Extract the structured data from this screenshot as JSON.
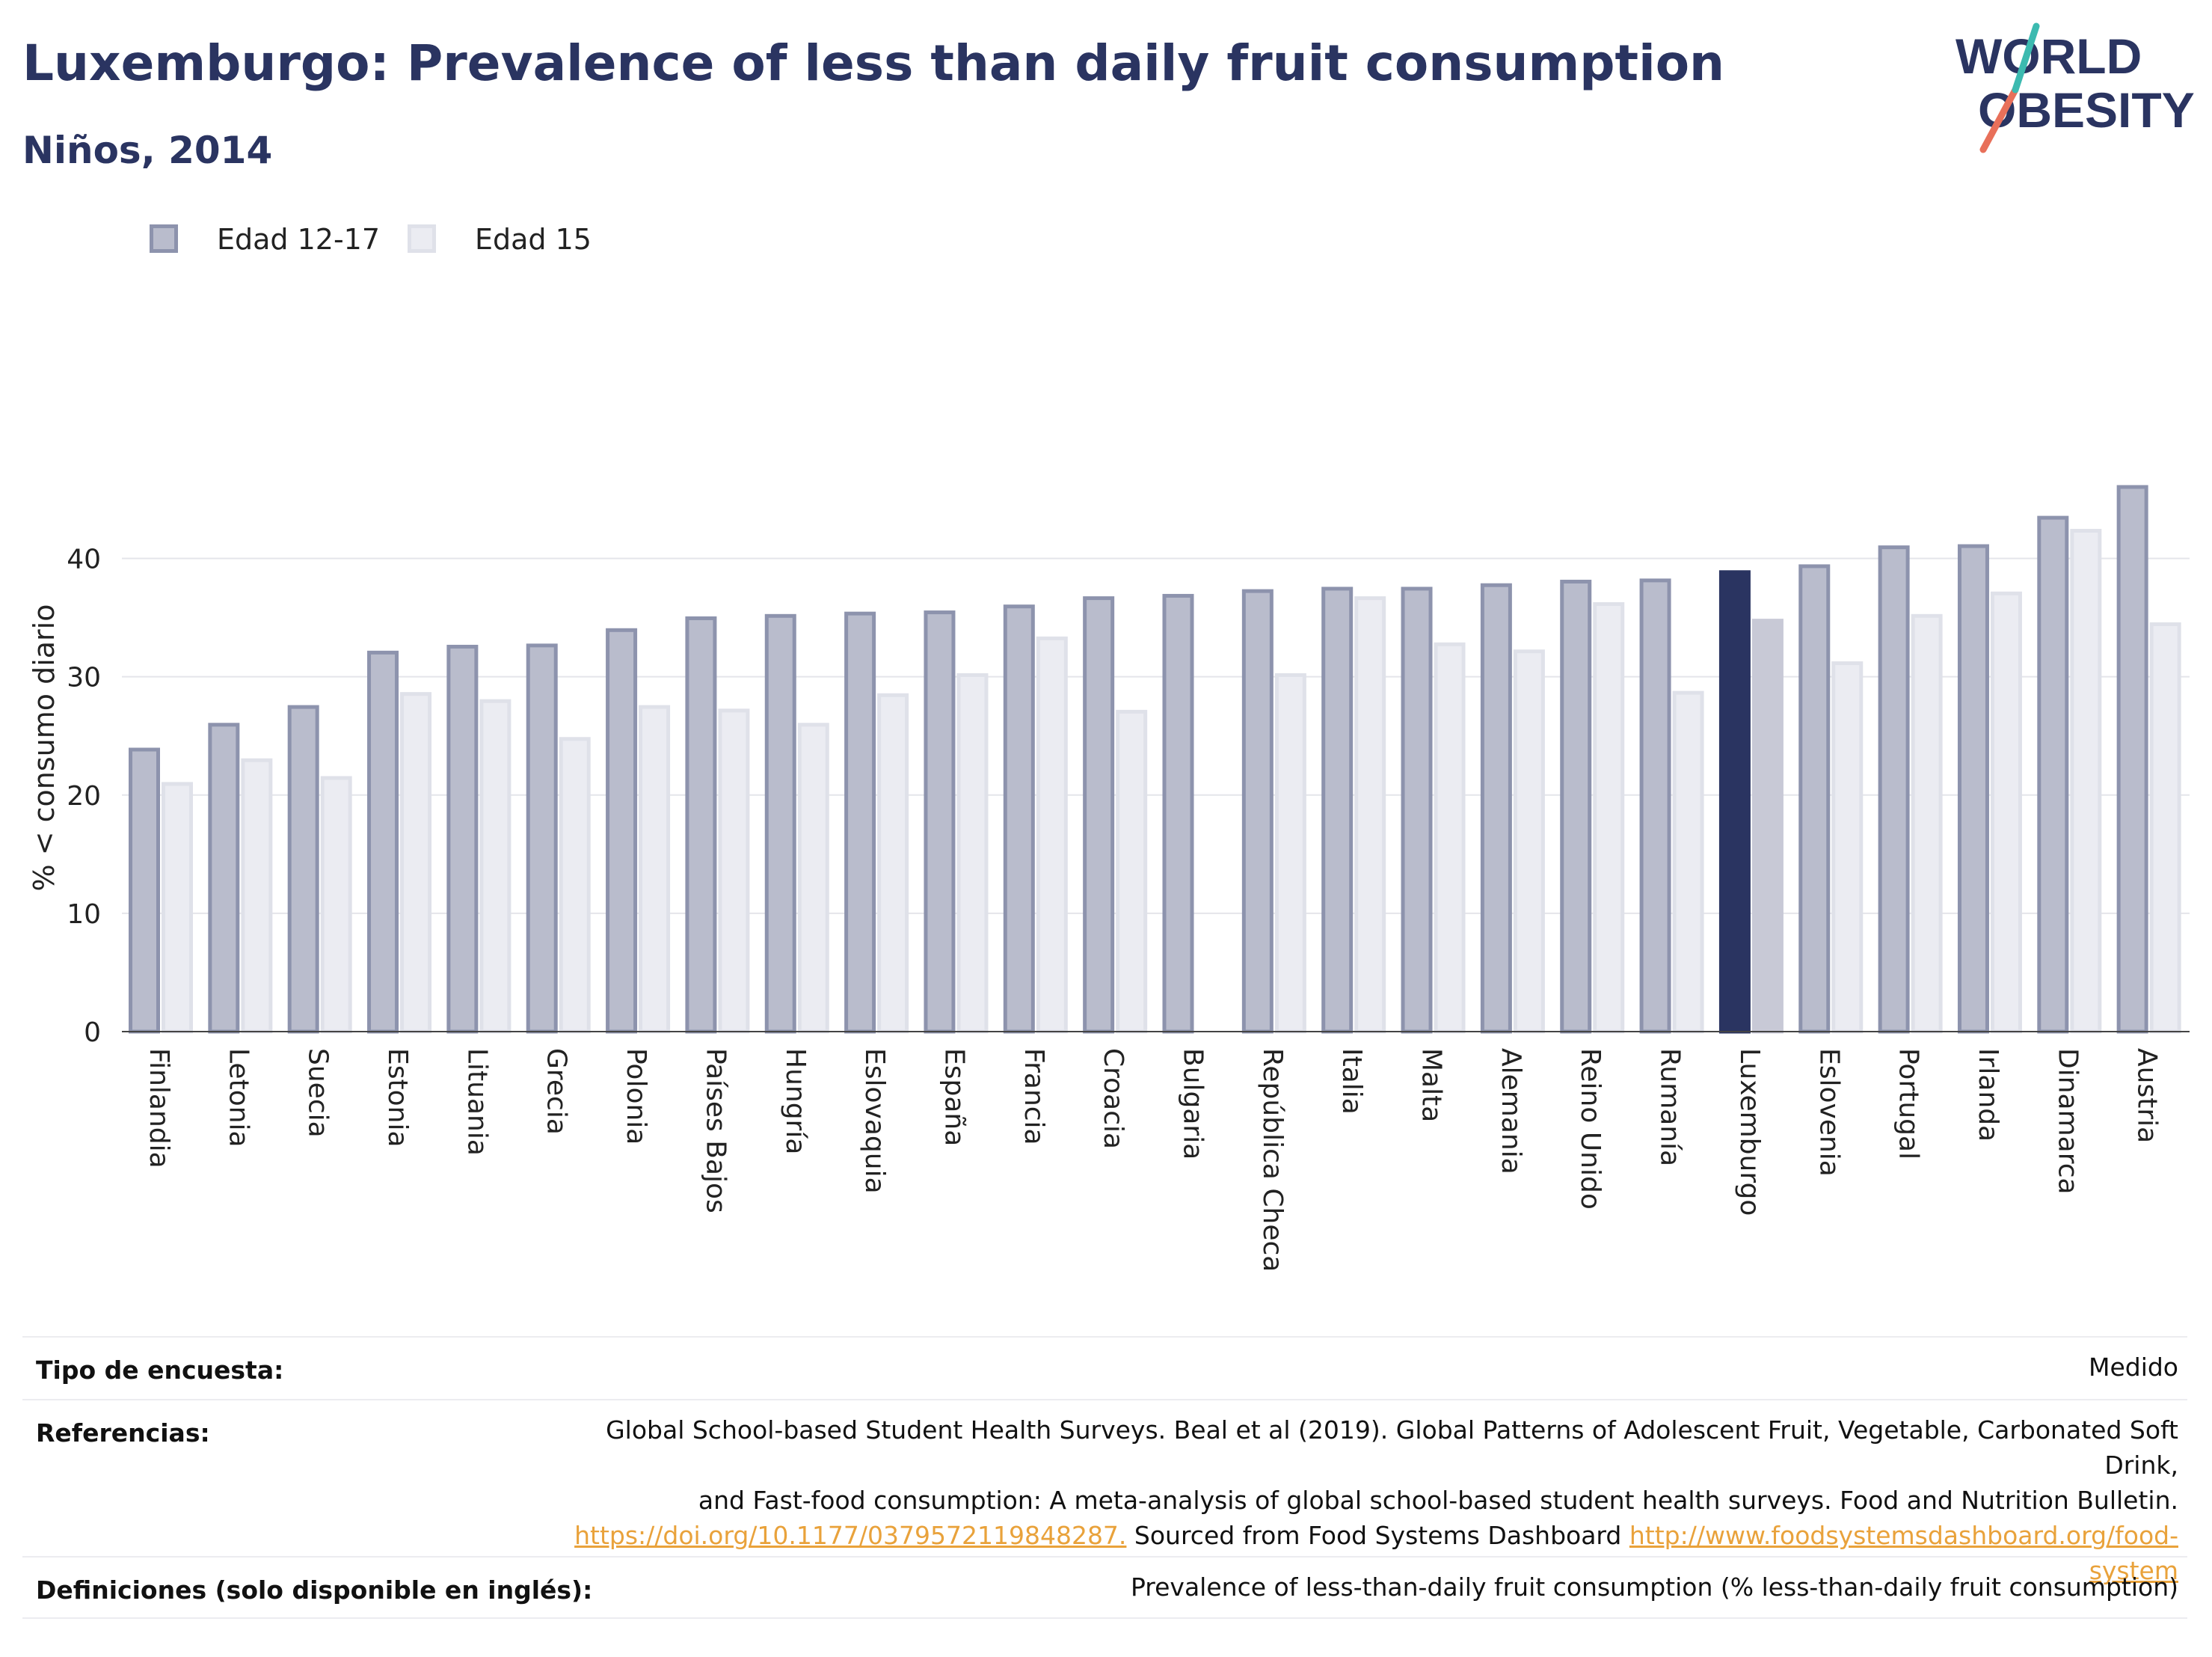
{
  "header": {
    "title": "Luxemburgo: Prevalence of less than daily fruit consumption",
    "subtitle": "Niños, 2014"
  },
  "logo": {
    "line1": "WORLD",
    "line2": "OBESITY"
  },
  "legend": [
    {
      "label": "Edad 12-17",
      "color": "#9ea3ba"
    },
    {
      "label": "Edad 15",
      "color": "#e6e7ee"
    }
  ],
  "colors": {
    "series1_fill": "#b9bccc",
    "series1_stroke": "#8d93ad",
    "series2_fill": "#ebecf2",
    "series2_stroke": "#dfe1e9",
    "highlight1": "#2a3461",
    "highlight2": "#c8c9d6",
    "axis_text": "#222222",
    "grid": "#e4e5ea"
  },
  "chart_data": {
    "type": "bar",
    "highlight": "Luxemburgo",
    "categories": [
      "Finlandia",
      "Letonia",
      "Suecia",
      "Estonia",
      "Lituania",
      "Grecia",
      "Polonia",
      "Países Bajos",
      "Hungría",
      "Eslovaquia",
      "España",
      "Francia",
      "Croacia",
      "Bulgaria",
      "República Checa",
      "Italia",
      "Malta",
      "Alemania",
      "Reino Unido",
      "Rumanía",
      "Luxemburgo",
      "Eslovenia",
      "Portugal",
      "Irlanda",
      "Dinamarca",
      "Austria"
    ],
    "series": [
      {
        "name": "Edad 12-17",
        "values": [
          24.0,
          26.1,
          27.6,
          32.2,
          32.7,
          32.8,
          34.1,
          35.1,
          35.3,
          35.5,
          35.6,
          36.1,
          36.8,
          37.0,
          37.4,
          37.6,
          37.6,
          37.9,
          38.2,
          38.3,
          39.0,
          39.5,
          41.1,
          41.2,
          43.6,
          46.2
        ]
      },
      {
        "name": "Edad 15",
        "values": [
          21.1,
          23.1,
          21.6,
          28.7,
          28.1,
          24.9,
          27.6,
          27.3,
          26.1,
          28.6,
          30.3,
          33.4,
          27.2,
          null,
          30.3,
          36.8,
          32.9,
          32.3,
          36.3,
          28.8,
          34.9,
          31.3,
          35.3,
          37.2,
          42.5,
          34.6
        ]
      }
    ],
    "xlabel": "",
    "ylabel": "% < consumo diario",
    "ylim": [
      0,
      48
    ],
    "yticks": [
      0,
      10,
      20,
      30,
      40
    ],
    "grid": true,
    "legend_position": "top-left"
  },
  "footer": {
    "survey_label": "Tipo de encuesta:",
    "survey_value": "Medido",
    "refs_label": "Referencias:",
    "refs_line1": "Global School-based Student Health Surveys. Beal et al (2019). Global Patterns of Adolescent Fruit, Vegetable, Carbonated Soft Drink,",
    "refs_line2": "and Fast-food consumption: A meta-analysis of global school-based student health surveys. Food and Nutrition Bulletin.",
    "refs_link1": "https://doi.org/10.1177/0379572119848287.",
    "refs_mid": " Sourced from Food Systems Dashboard ",
    "refs_link2a": "http://www.foodsystemsdashboard.org/food-",
    "refs_link2b": "system",
    "defs_label": "Definiciones (solo disponible en inglés):",
    "defs_value": "Prevalence of less-than-daily fruit consumption (% less-than-daily fruit consumption)"
  }
}
